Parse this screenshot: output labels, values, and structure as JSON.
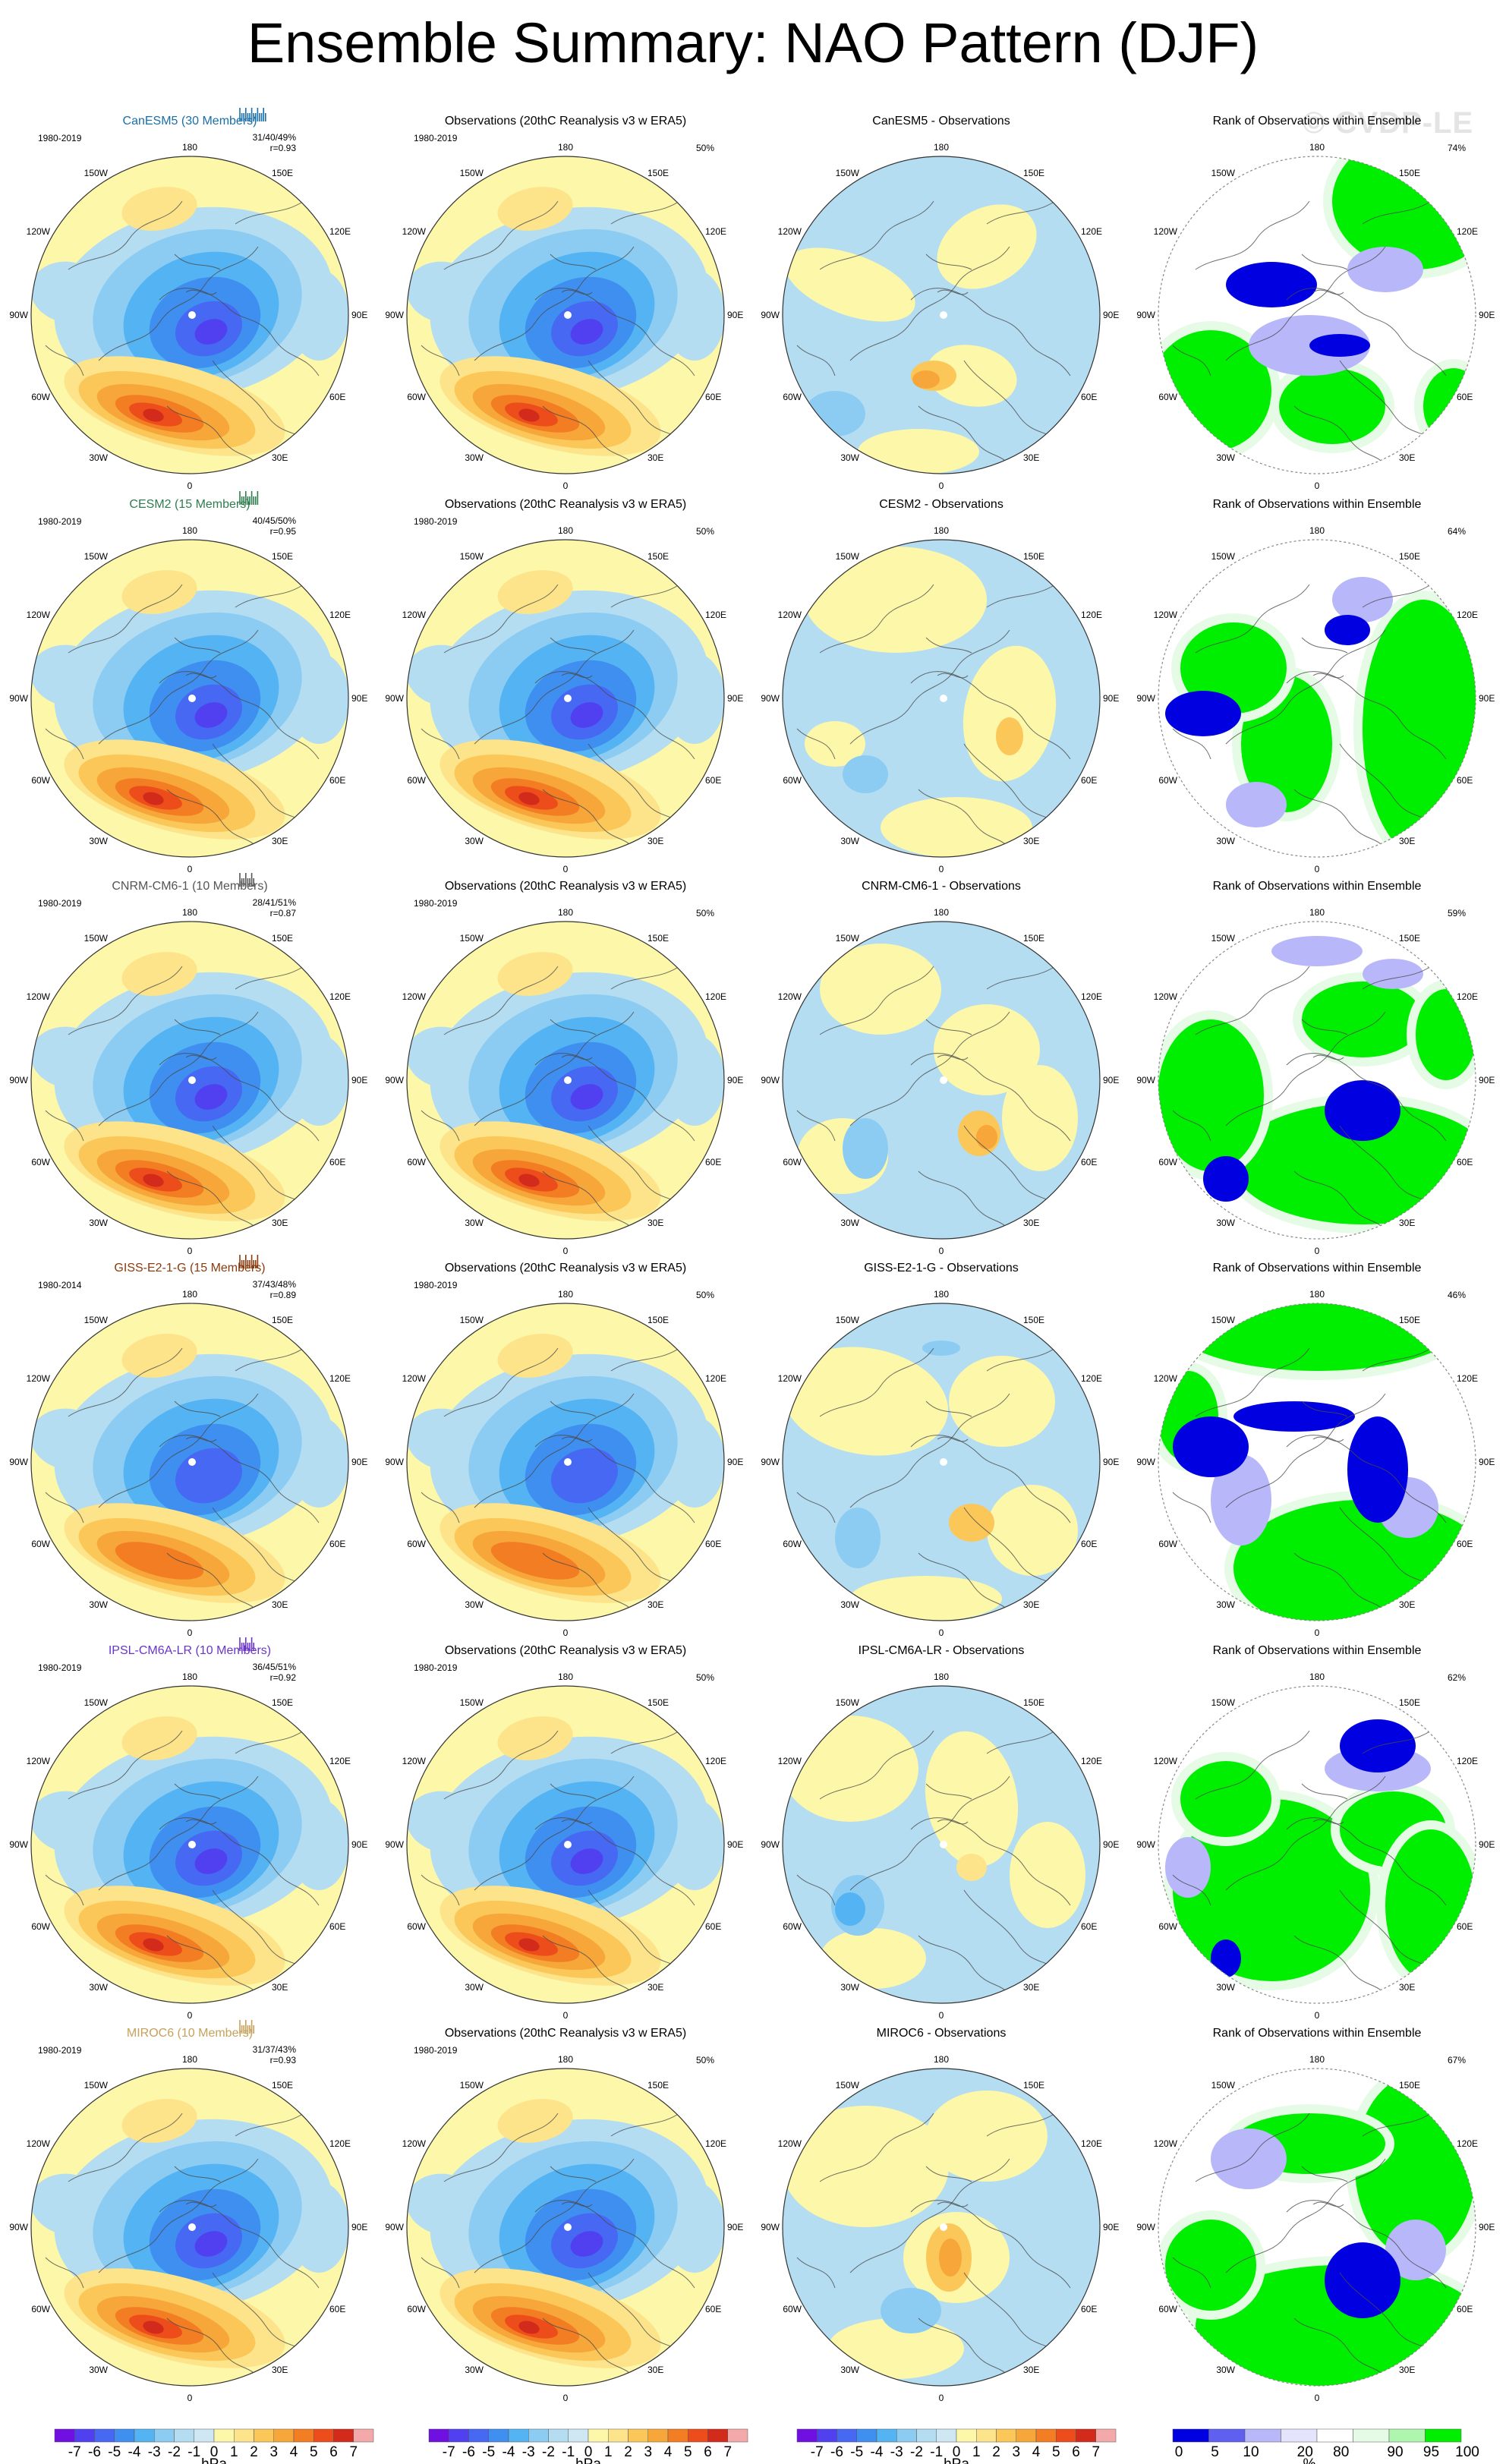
{
  "title": "Ensemble Summary: NAO Pattern (DJF)",
  "watermark": "© CVDP-LE",
  "lon_labels": {
    "top": "180",
    "bottom": "0",
    "left_upper": "150W",
    "left_mid1": "120W",
    "left_mid2": "90W",
    "left_mid3": "60W",
    "left_lower": "30W",
    "right_upper": "150E",
    "right_mid1": "120E",
    "right_mid2": "90E",
    "right_mid3": "60E",
    "right_lower": "30E"
  },
  "colors": {
    "model_title": [
      "#1a6fa8",
      "#2e7d4f",
      "#555555",
      "#8b3a0e",
      "#6a35c9",
      "#c6a15b"
    ],
    "neg": [
      "#7010e0",
      "#5040f0",
      "#4668f2",
      "#3f8ff0",
      "#54b3f2",
      "#8cccf2",
      "#b4ddf2",
      "#cfe6f3"
    ],
    "pos": [
      "#fcf7a9",
      "#fde48a",
      "#fbc759",
      "#f7a639",
      "#f37d22",
      "#ec4d1a",
      "#d32b1b",
      "#f3a9a9"
    ],
    "rank": [
      "#0000e1",
      "#5f5ff0",
      "#b7b7fa",
      "#e4e4fc",
      "#ffffff",
      "#e5fbe5",
      "#aef5ae",
      "#00ef00"
    ]
  },
  "colorbar_hpa": {
    "labels": [
      "-7",
      "-6",
      "-5",
      "-4",
      "-3",
      "-2",
      "-1",
      "0",
      "1",
      "2",
      "3",
      "4",
      "5",
      "6",
      "7"
    ],
    "unit": "hPa"
  },
  "colorbar_rank": {
    "labels": [
      "0",
      "5",
      "10",
      "20",
      "80",
      "90",
      "95",
      "100"
    ],
    "unit": "%"
  },
  "rows": [
    {
      "model_title": "CanESM5 (30 Members)",
      "years": "1980-2019",
      "pct": "31/40/49%",
      "r": "r=0.93",
      "obs_title": "Observations (20thC Reanalysis v3 w ERA5)",
      "obs_years": "1980-2019",
      "obs_pct": "50%",
      "diff_title": "CanESM5 - Observations",
      "rank_title": "Rank of Observations within Ensemble",
      "rank_pct": "74%"
    },
    {
      "model_title": "CESM2 (15 Members)",
      "years": "1980-2019",
      "pct": "40/45/50%",
      "r": "r=0.95",
      "obs_title": "Observations (20thC Reanalysis v3 w ERA5)",
      "obs_years": "1980-2019",
      "obs_pct": "50%",
      "diff_title": "CESM2 - Observations",
      "rank_title": "Rank of Observations within Ensemble",
      "rank_pct": "64%"
    },
    {
      "model_title": "CNRM-CM6-1 (10 Members)",
      "years": "1980-2019",
      "pct": "28/41/51%",
      "r": "r=0.87",
      "obs_title": "Observations (20thC Reanalysis v3 w ERA5)",
      "obs_years": "1980-2019",
      "obs_pct": "50%",
      "diff_title": "CNRM-CM6-1 - Observations",
      "rank_title": "Rank of Observations within Ensemble",
      "rank_pct": "59%"
    },
    {
      "model_title": "GISS-E2-1-G (15 Members)",
      "years": "1980-2014",
      "pct": "37/43/48%",
      "r": "r=0.89",
      "obs_title": "Observations (20thC Reanalysis v3 w ERA5)",
      "obs_years": "1980-2019",
      "obs_pct": "50%",
      "diff_title": "GISS-E2-1-G - Observations",
      "rank_title": "Rank of Observations within Ensemble",
      "rank_pct": "46%"
    },
    {
      "model_title": "IPSL-CM6A-LR (10 Members)",
      "years": "1980-2019",
      "pct": "36/45/51%",
      "r": "r=0.92",
      "obs_title": "Observations (20thC Reanalysis v3 w ERA5)",
      "obs_years": "1980-2019",
      "obs_pct": "50%",
      "diff_title": "IPSL-CM6A-LR - Observations",
      "rank_title": "Rank of Observations within Ensemble",
      "rank_pct": "62%"
    },
    {
      "model_title": "MIROC6 (10 Members)",
      "years": "1980-2019",
      "pct": "31/37/43%",
      "r": "r=0.93",
      "obs_title": "Observations (20thC Reanalysis v3 w ERA5)",
      "obs_years": "1980-2019",
      "obs_pct": "50%",
      "diff_title": "MIROC6 - Observations",
      "rank_title": "Rank of Observations within Ensemble",
      "rank_pct": "67%"
    }
  ]
}
